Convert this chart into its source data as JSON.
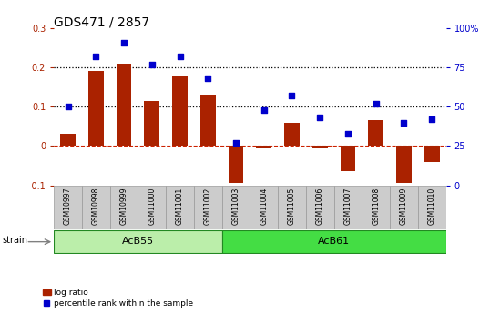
{
  "title": "GDS471 / 2857",
  "samples": [
    "GSM10997",
    "GSM10998",
    "GSM10999",
    "GSM11000",
    "GSM11001",
    "GSM11002",
    "GSM11003",
    "GSM11004",
    "GSM11005",
    "GSM11006",
    "GSM11007",
    "GSM11008",
    "GSM11009",
    "GSM11010"
  ],
  "log_ratio": [
    0.03,
    0.19,
    0.21,
    0.115,
    0.18,
    0.13,
    -0.095,
    -0.005,
    0.06,
    -0.005,
    -0.065,
    0.065,
    -0.095,
    -0.04
  ],
  "percentile_rank": [
    50,
    82,
    91,
    77,
    82,
    68,
    27,
    48,
    57,
    43,
    33,
    52,
    40,
    42
  ],
  "groups": [
    {
      "label": "AcB55",
      "indices": [
        0,
        1,
        2,
        3,
        4,
        5
      ]
    },
    {
      "label": "AcB61",
      "indices": [
        6,
        7,
        8,
        9,
        10,
        11,
        12,
        13
      ]
    }
  ],
  "group_colors": [
    "#bbeeaa",
    "#44dd44"
  ],
  "group_edge_color": "#228822",
  "bar_color": "#aa2200",
  "dot_color": "#0000cc",
  "ylim_left": [
    -0.1,
    0.3
  ],
  "ylim_right": [
    0,
    100
  ],
  "yticks_left": [
    -0.1,
    0.0,
    0.1,
    0.2,
    0.3
  ],
  "yticks_right": [
    0,
    25,
    50,
    75,
    100
  ],
  "hlines": [
    0.1,
    0.2
  ],
  "hline_zero_color": "#cc2200",
  "label_cell_color": "#cccccc",
  "label_cell_edge": "#999999",
  "bg_color": "#ffffff",
  "strain_label": "strain",
  "legend_bar_label": "log ratio",
  "legend_dot_label": "percentile rank within the sample",
  "title_fontsize": 10,
  "tick_fontsize": 7,
  "sample_fontsize": 5.5,
  "group_fontsize": 8,
  "strain_fontsize": 7,
  "legend_fontsize": 6.5
}
